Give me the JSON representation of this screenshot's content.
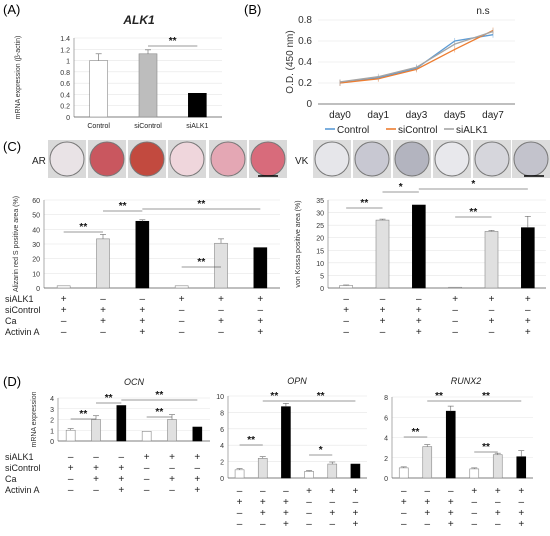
{
  "panel_labels": {
    "A": "(A)",
    "B": "(B)",
    "C": "(C)",
    "D": "(D)"
  },
  "chart_data": [
    {
      "id": "A",
      "type": "bar",
      "title": "ALK1",
      "ylabel": "mRNA expression (β-actin)",
      "categories": [
        "Control",
        "siControl",
        "siALK1"
      ],
      "values": [
        1.0,
        1.12,
        0.42
      ],
      "errors": [
        0.12,
        0.07,
        0.0
      ],
      "ylim": [
        0,
        1.4
      ],
      "yticks": [
        "0",
        "0.2",
        "0.4",
        "0.6",
        "0.8",
        "1",
        "1.2",
        "1.4"
      ],
      "fills": [
        "#ffffff",
        "#bdbdbd",
        "#000000"
      ],
      "significance": [
        {
          "from": 1,
          "to": 2,
          "label": "**"
        }
      ]
    },
    {
      "id": "B",
      "type": "line",
      "ylabel": "O.D. (450 nm)",
      "categories": [
        "day0",
        "day1",
        "day3",
        "day5",
        "day7"
      ],
      "series": [
        {
          "name": "Control",
          "color": "#5b9bd5",
          "values": [
            0.2,
            0.25,
            0.34,
            0.6,
            0.66
          ]
        },
        {
          "name": "siControl",
          "color": "#ed7d31",
          "values": [
            0.2,
            0.24,
            0.33,
            0.52,
            0.7
          ]
        },
        {
          "name": "siALK1",
          "color": "#a5a5a5",
          "values": [
            0.21,
            0.26,
            0.35,
            0.57,
            0.69
          ]
        }
      ],
      "ylim": [
        0,
        0.8
      ],
      "yticks": [
        "0",
        "0.2",
        "0.4",
        "0.6",
        "0.8"
      ],
      "annotation": "n.s"
    },
    {
      "id": "C-AR",
      "type": "bar",
      "image_label": "AR",
      "ylabel": "Alizarin red S positive area (%)",
      "values": [
        1.5,
        33.5,
        45.5,
        1.5,
        30.5,
        27.5
      ],
      "errors": [
        0,
        3,
        1,
        0,
        3,
        0
      ],
      "fills": [
        "#ffffff",
        "#e0e0e0",
        "#000000",
        "#ffffff",
        "#e0e0e0",
        "#000000"
      ],
      "ylim": [
        0,
        60
      ],
      "yticks": [
        "0",
        "10",
        "20",
        "30",
        "40",
        "50",
        "60"
      ],
      "significance": [
        {
          "from": 0,
          "to": 1,
          "label": "**"
        },
        {
          "from": 1,
          "to": 2,
          "label": "**"
        },
        {
          "from": 2,
          "to": 5,
          "label": "**"
        },
        {
          "from": 3,
          "to": 4,
          "label": "**"
        }
      ]
    },
    {
      "id": "C-VK",
      "type": "bar",
      "image_label": "VK",
      "ylabel": "von Kossa positive area (%)",
      "values": [
        1.0,
        27.0,
        33.0,
        0.3,
        22.5,
        24.0
      ],
      "errors": [
        0.2,
        0.4,
        0.0,
        0.0,
        0.4,
        4.5
      ],
      "fills": [
        "#ffffff",
        "#e0e0e0",
        "#000000",
        "#ffffff",
        "#e0e0e0",
        "#000000"
      ],
      "ylim": [
        0,
        35
      ],
      "yticks": [
        "0",
        "5",
        "10",
        "15",
        "20",
        "25",
        "30",
        "35"
      ],
      "significance": [
        {
          "from": 0,
          "to": 1,
          "label": "**"
        },
        {
          "from": 1,
          "to": 2,
          "label": "*"
        },
        {
          "from": 2,
          "to": 5,
          "label": "*"
        },
        {
          "from": 3,
          "to": 4,
          "label": "**"
        }
      ]
    },
    {
      "id": "D-OCN",
      "type": "bar",
      "title": "OCN",
      "ylabel": "mRNA expression",
      "values": [
        1.0,
        2.0,
        3.3,
        0.9,
        2.0,
        1.3
      ],
      "errors": [
        0.15,
        0.35,
        0.0,
        0.0,
        0.45,
        0.0
      ],
      "fills": [
        "#ffffff",
        "#e0e0e0",
        "#000000",
        "#ffffff",
        "#e0e0e0",
        "#000000"
      ],
      "ylim": [
        0,
        4
      ],
      "yticks": [
        "0",
        "1",
        "2",
        "3",
        "4"
      ],
      "significance": [
        {
          "from": 0,
          "to": 1,
          "label": "**"
        },
        {
          "from": 1,
          "to": 2,
          "label": "**"
        },
        {
          "from": 2,
          "to": 5,
          "label": "**"
        },
        {
          "from": 3,
          "to": 4,
          "label": "**"
        }
      ]
    },
    {
      "id": "D-OPN",
      "type": "bar",
      "title": "OPN",
      "values": [
        1.0,
        2.4,
        8.7,
        0.8,
        1.7,
        1.7
      ],
      "errors": [
        0.15,
        0.2,
        0.4,
        0.1,
        0.25,
        0.0
      ],
      "fills": [
        "#ffffff",
        "#e0e0e0",
        "#000000",
        "#ffffff",
        "#e0e0e0",
        "#000000"
      ],
      "ylim": [
        0,
        10
      ],
      "yticks": [
        "0",
        "2",
        "4",
        "6",
        "8",
        "10"
      ],
      "significance": [
        {
          "from": 0,
          "to": 1,
          "label": "**"
        },
        {
          "from": 1,
          "to": 2,
          "label": "**"
        },
        {
          "from": 2,
          "to": 5,
          "label": "**"
        },
        {
          "from": 3,
          "to": 4,
          "label": "*"
        }
      ]
    },
    {
      "id": "D-RUNX2",
      "type": "bar",
      "title": "RUNX2",
      "values": [
        1.0,
        3.1,
        6.6,
        0.9,
        2.3,
        2.1
      ],
      "errors": [
        0.1,
        0.2,
        0.5,
        0.1,
        0.15,
        0.6
      ],
      "fills": [
        "#ffffff",
        "#e0e0e0",
        "#000000",
        "#ffffff",
        "#e0e0e0",
        "#000000"
      ],
      "ylim": [
        0,
        8
      ],
      "yticks": [
        "0",
        "2",
        "4",
        "6",
        "8"
      ],
      "significance": [
        {
          "from": 0,
          "to": 1,
          "label": "**"
        },
        {
          "from": 1,
          "to": 2,
          "label": "**"
        },
        {
          "from": 2,
          "to": 5,
          "label": "**"
        },
        {
          "from": 3,
          "to": 4,
          "label": "**"
        }
      ]
    }
  ],
  "conditions": {
    "rows": [
      {
        "label": "siALK1",
        "signs": [
          "+",
          "–",
          "–",
          "+",
          "+",
          "+"
        ]
      },
      {
        "label": "siControl",
        "signs": [
          "+",
          "+",
          "+",
          "–",
          "–",
          "–"
        ]
      },
      {
        "label": "Ca",
        "signs": [
          "–",
          "+",
          "+",
          "–",
          "+",
          "+"
        ]
      },
      {
        "label": "Activin A",
        "signs": [
          "–",
          "–",
          "+",
          "–",
          "–",
          "+"
        ]
      }
    ]
  },
  "conditions_c_right": [
    {
      "label": "siALK1",
      "signs": [
        "–",
        "–",
        "–",
        "+",
        "+",
        "+"
      ]
    },
    {
      "label": "siControl",
      "signs": [
        "+",
        "+",
        "+",
        "–",
        "–",
        "–"
      ]
    },
    {
      "label": "Ca",
      "signs": [
        "–",
        "+",
        "+",
        "–",
        "+",
        "+"
      ]
    },
    {
      "label": "Activin A",
      "signs": [
        "–",
        "–",
        "+",
        "–",
        "–",
        "+"
      ]
    }
  ],
  "conditions_d": [
    {
      "label": "siALK1",
      "signs": [
        "–",
        "–",
        "–",
        "+",
        "+",
        "+"
      ]
    },
    {
      "label": "siControl",
      "signs": [
        "+",
        "+",
        "+",
        "–",
        "–",
        "–"
      ]
    },
    {
      "label": "Ca",
      "signs": [
        "–",
        "+",
        "+",
        "–",
        "+",
        "+"
      ]
    },
    {
      "label": "Activin A",
      "signs": [
        "–",
        "–",
        "+",
        "–",
        "–",
        "+"
      ]
    }
  ],
  "well_colors": {
    "AR": [
      "#e9e3e6",
      "#c9575f",
      "#c24a3f",
      "#efd6dc",
      "#e4a7b4",
      "#d86b7b"
    ],
    "VK": [
      "#e6e6ea",
      "#c8c8d2",
      "#b3b4bf",
      "#e8e8ec",
      "#d6d6dc",
      "#c3c3cc"
    ]
  }
}
